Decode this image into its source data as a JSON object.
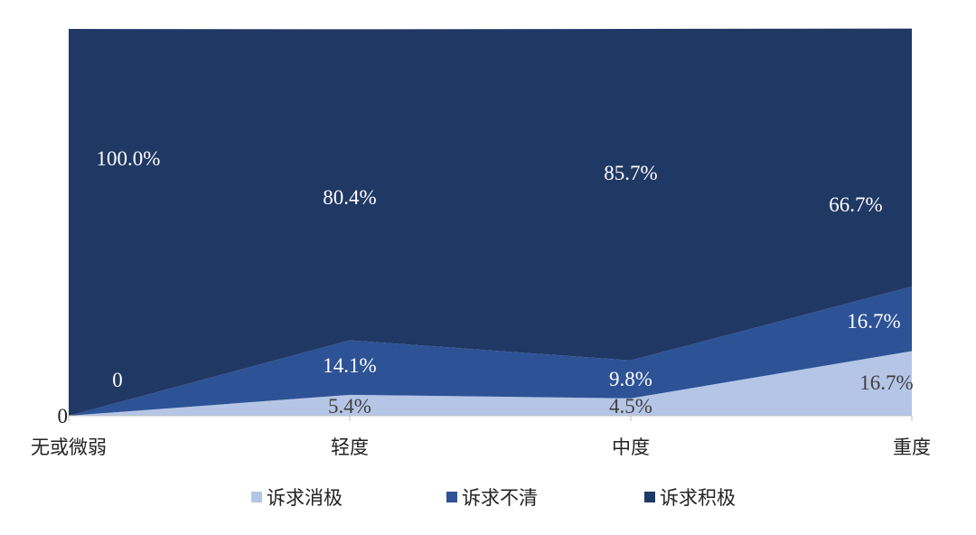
{
  "chart_data": {
    "type": "area",
    "stacked": true,
    "percent_stacked": true,
    "categories": [
      "无或微弱",
      "轻度",
      "中度",
      "重度"
    ],
    "series": [
      {
        "name": "诉求消极",
        "values": [
          0,
          5.4,
          4.5,
          16.7
        ],
        "labels": [
          "",
          "5.4%",
          "4.5%",
          "16.7%"
        ],
        "color": "#b4c5e6"
      },
      {
        "name": "诉求不清",
        "values": [
          0,
          14.1,
          9.8,
          16.7
        ],
        "labels": [
          "0",
          "14.1%",
          "9.8%",
          "16.7%"
        ],
        "color": "#2d5296"
      },
      {
        "name": "诉求积极",
        "values": [
          100.0,
          80.4,
          85.7,
          66.7
        ],
        "labels": [
          "100.0%",
          "80.4%",
          "85.7%",
          "66.7%"
        ],
        "color": "#203864"
      }
    ],
    "ylim": [
      0,
      100
    ],
    "y_tick_labels": [
      "0"
    ],
    "grid": false,
    "legend_position": "bottom",
    "title": "",
    "xlabel": "",
    "ylabel": ""
  }
}
